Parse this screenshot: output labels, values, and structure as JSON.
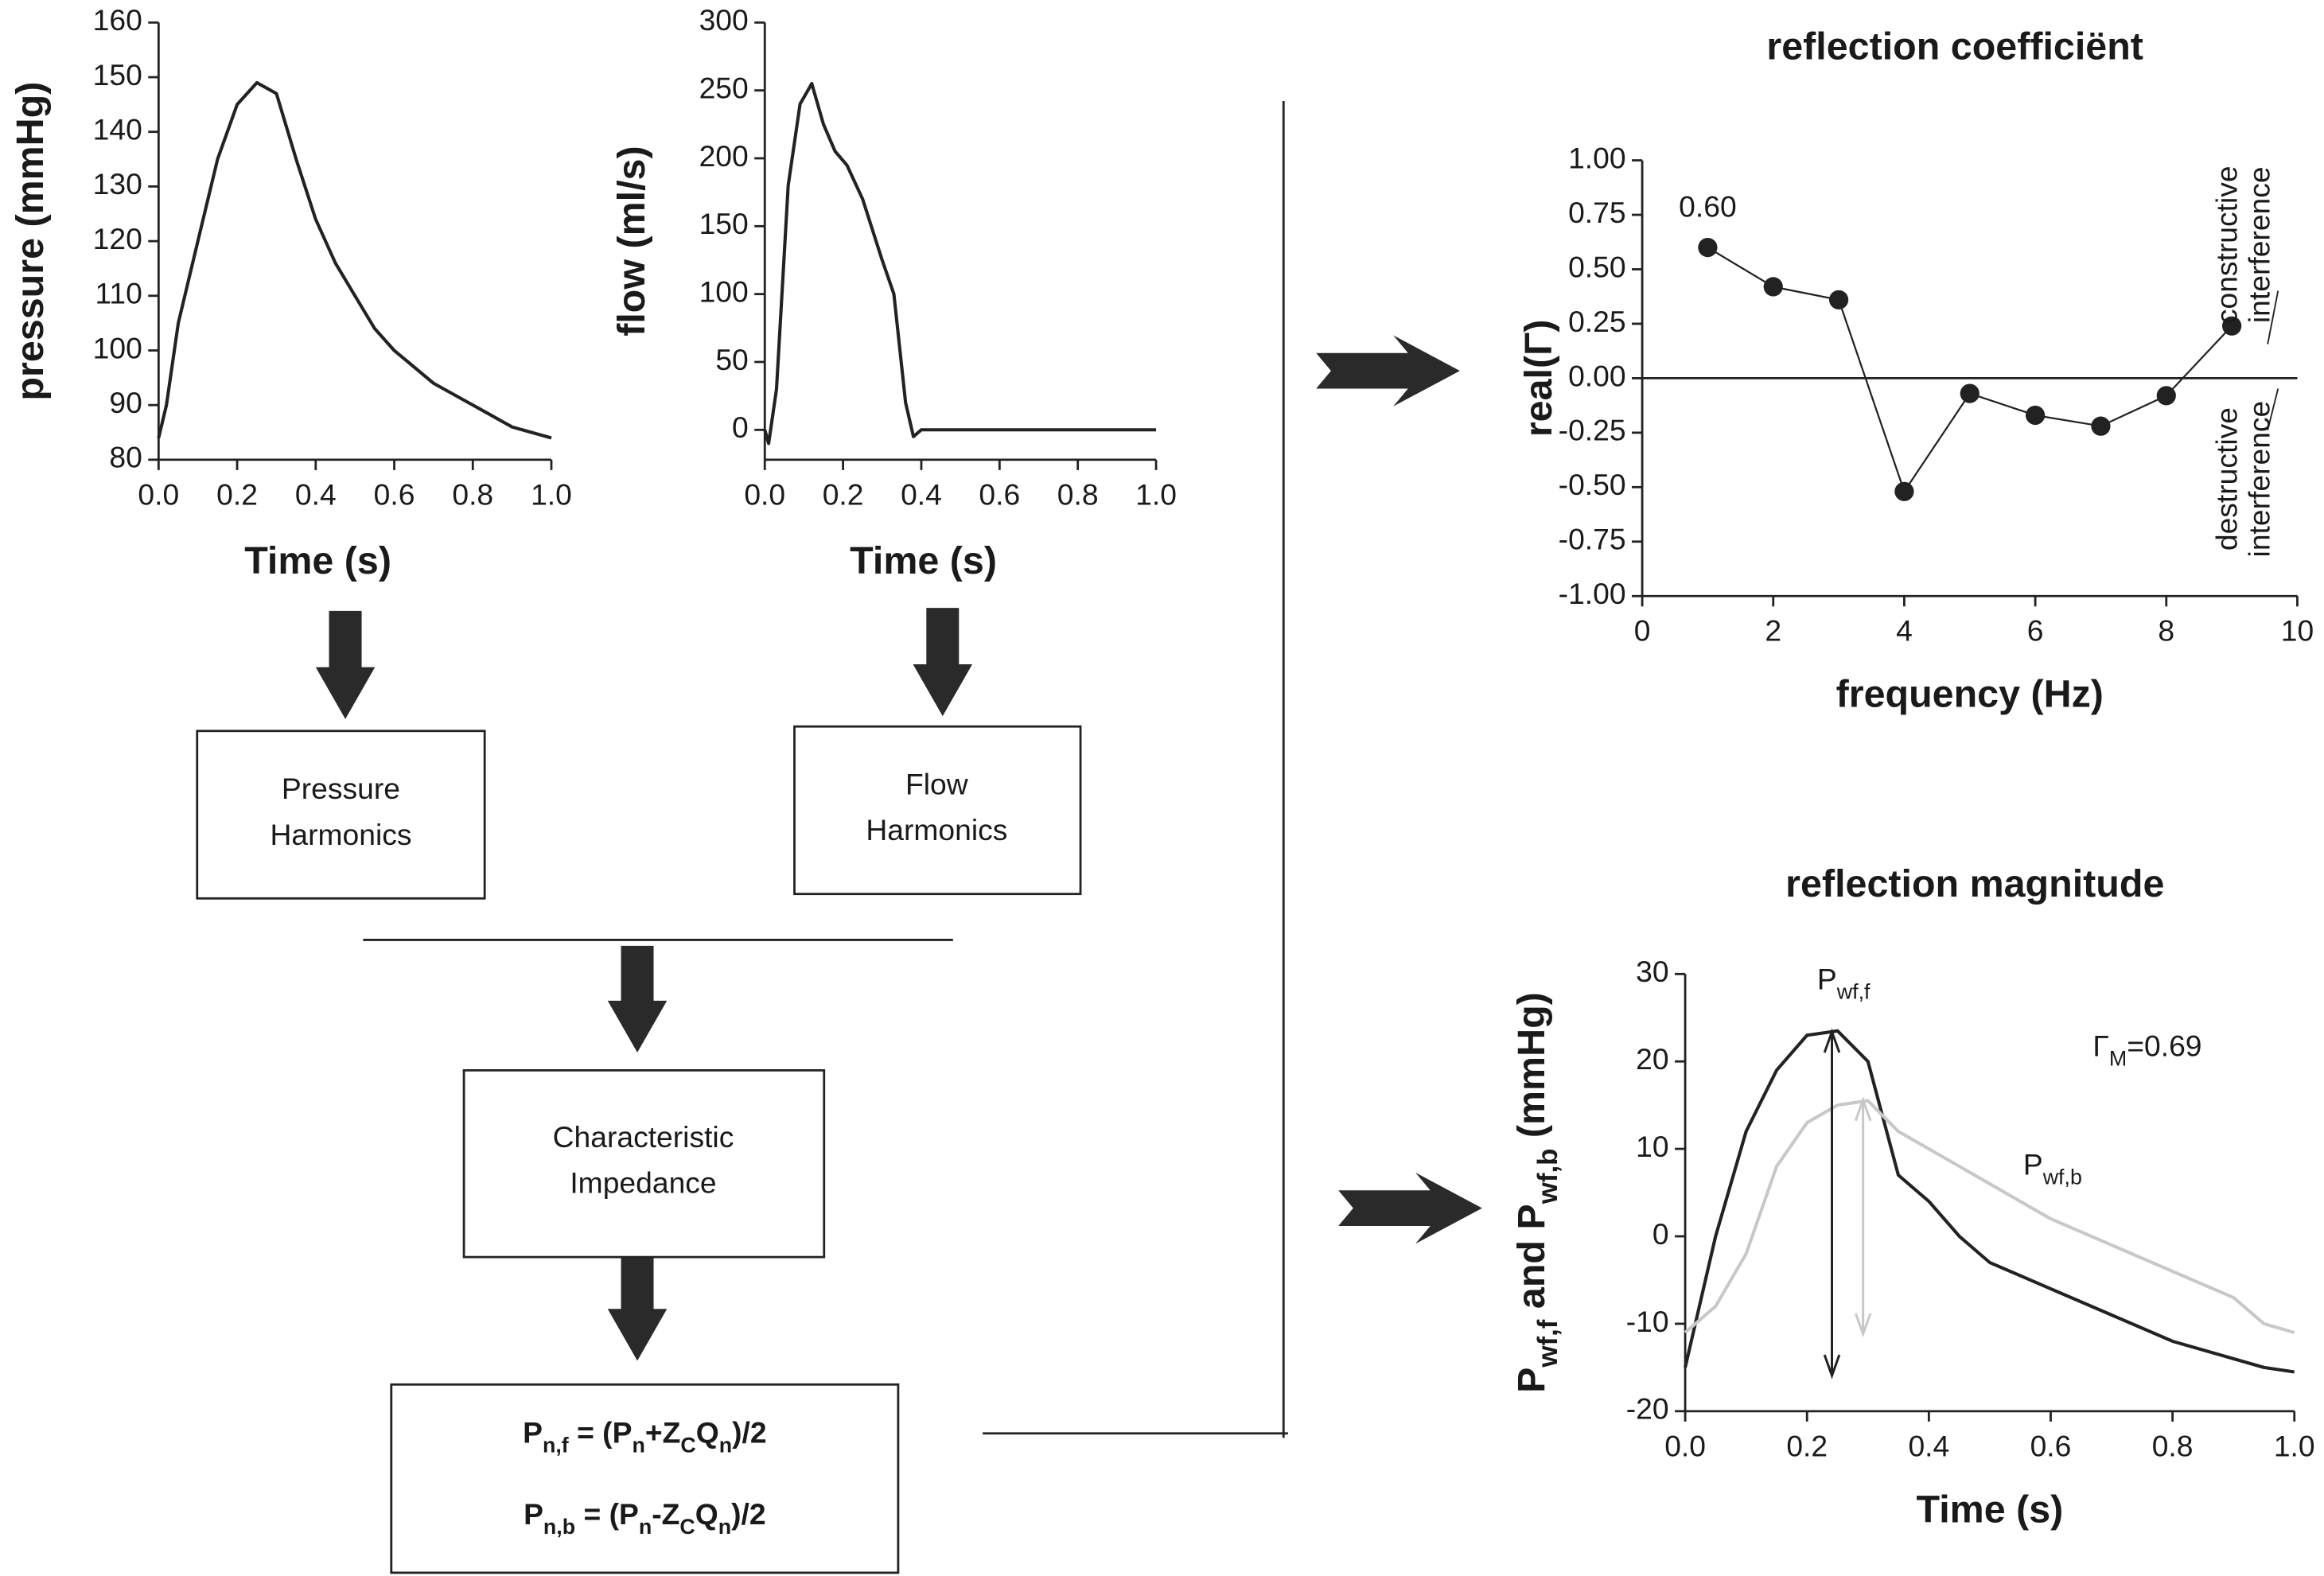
{
  "chart_data": [
    {
      "type": "line",
      "ylabel": "pressure (mmHg)",
      "xlabel": "Time (s)",
      "color": "#222222",
      "x": [
        0,
        0.02,
        0.05,
        0.1,
        0.15,
        0.2,
        0.25,
        0.3,
        0.35,
        0.4,
        0.45,
        0.5,
        0.55,
        0.6,
        0.7,
        0.8,
        0.85,
        0.9,
        0.95,
        1.0
      ],
      "values": [
        84,
        90,
        105,
        120,
        135,
        145,
        149,
        147,
        135,
        124,
        116,
        110,
        104,
        100,
        94,
        90,
        88,
        86,
        85,
        84
      ],
      "xlim": [
        0,
        1
      ],
      "xticks": [
        {
          "value": 0,
          "label": "0.0"
        },
        0.2,
        0.4,
        0.6,
        0.8,
        {
          "value": 1,
          "label": "1.0"
        }
      ],
      "ylim": [
        80,
        160
      ],
      "yticks": [
        80,
        90,
        100,
        110,
        120,
        130,
        140,
        150,
        160
      ]
    },
    {
      "type": "line",
      "ylabel": "flow (ml/s)",
      "xlabel": "Time (s)",
      "color": "#222222",
      "x": [
        0,
        0.01,
        0.03,
        0.06,
        0.09,
        0.12,
        0.15,
        0.18,
        0.21,
        0.25,
        0.3,
        0.33,
        0.36,
        0.38,
        0.4,
        0.42,
        0.5,
        1.0
      ],
      "values": [
        0,
        -10,
        30,
        180,
        240,
        255,
        225,
        205,
        195,
        170,
        125,
        100,
        20,
        -5,
        0,
        0,
        0,
        0
      ],
      "xlim": [
        0,
        1
      ],
      "xticks": [
        {
          "value": 0,
          "label": "0.0"
        },
        0.2,
        0.4,
        0.6,
        0.8,
        {
          "value": 1,
          "label": "1.0"
        }
      ],
      "ylim": [
        -22,
        300
      ],
      "yticks": [
        0,
        50,
        100,
        150,
        200,
        250,
        300
      ]
    },
    {
      "type": "line",
      "markers": true,
      "zero_line": true,
      "title": "reflection coefficiënt",
      "ylabel": "real(Γ)",
      "xlabel": "frequency (Hz)",
      "color": "#222222",
      "x": [
        1,
        2,
        3,
        4,
        5,
        6,
        7,
        8,
        9
      ],
      "values": [
        0.6,
        0.42,
        0.36,
        -0.52,
        -0.07,
        -0.17,
        -0.22,
        -0.08,
        0.24
      ],
      "value_labels": [
        "0.60",
        null,
        null,
        null,
        null,
        null,
        null,
        null,
        null
      ],
      "annotations": [
        [
          "constructive",
          "interference"
        ],
        [
          "destructive",
          "interference"
        ]
      ],
      "xlim": [
        0,
        10
      ],
      "xticks": [
        0,
        2,
        4,
        6,
        8,
        10
      ],
      "ylim": [
        -1,
        1
      ],
      "yticks": [
        {
          "value": -1,
          "label": "-1.00"
        },
        {
          "value": -0.75,
          "label": "-0.75"
        },
        {
          "value": -0.5,
          "label": "-0.50"
        },
        {
          "value": -0.25,
          "label": "-0.25"
        },
        {
          "value": 0,
          "label": "0.00"
        },
        {
          "value": 0.25,
          "label": "0.25"
        },
        {
          "value": 0.5,
          "label": "0.50"
        },
        {
          "value": 0.75,
          "label": "0.75"
        },
        {
          "value": 1,
          "label": "1.00"
        }
      ]
    },
    {
      "type": "line",
      "title": "reflection magnitude",
      "ylabel": [
        "P",
        "wf,f",
        " and P",
        "wf,b",
        " (mmHg)"
      ],
      "xlabel": "Time (s)",
      "annotations": [
        [
          "Γ",
          "M",
          "=0.69"
        ]
      ],
      "x": [
        0,
        0.05,
        0.1,
        0.15,
        0.2,
        0.25,
        0.3,
        0.35,
        0.4,
        0.45,
        0.5,
        0.6,
        0.7,
        0.8,
        0.9,
        0.95,
        1.0
      ],
      "series": [
        {
          "name": "Pwf,f",
          "color": "#222222",
          "values": [
            -15,
            0,
            12,
            19,
            23,
            23.5,
            20,
            7,
            4,
            0,
            -3,
            -6,
            -9,
            -12,
            -14,
            -15,
            -15.5
          ]
        },
        {
          "name": "Pwf,b",
          "color": "#c8c8c8",
          "values": [
            -11,
            -8,
            -2,
            8,
            13,
            15,
            15.5,
            12,
            10,
            8,
            6,
            2,
            -1,
            -4,
            -7,
            -10,
            -11
          ]
        }
      ],
      "xlim": [
        0,
        1
      ],
      "xticks": [
        {
          "value": 0,
          "label": "0.0"
        },
        0.2,
        0.4,
        0.6,
        0.8,
        {
          "value": 1,
          "label": "1.0"
        }
      ],
      "ylim": [
        -20,
        30
      ],
      "yticks": [
        -20,
        -10,
        0,
        10,
        20,
        30
      ]
    }
  ],
  "diagram": {
    "boxes": [
      [
        "Pressure",
        "Harmonics"
      ],
      [
        "Flow",
        "Harmonics"
      ],
      [
        "Characteristic",
        "Impedance"
      ]
    ],
    "formulas": [
      [
        "P",
        "n,f",
        " = (P",
        "n",
        "+Z",
        "C",
        "Q",
        "n",
        ")/2"
      ],
      [
        "P",
        "n,b",
        " = (P",
        "n",
        "-Z",
        "C",
        "Q",
        "n",
        ")/2"
      ]
    ]
  }
}
